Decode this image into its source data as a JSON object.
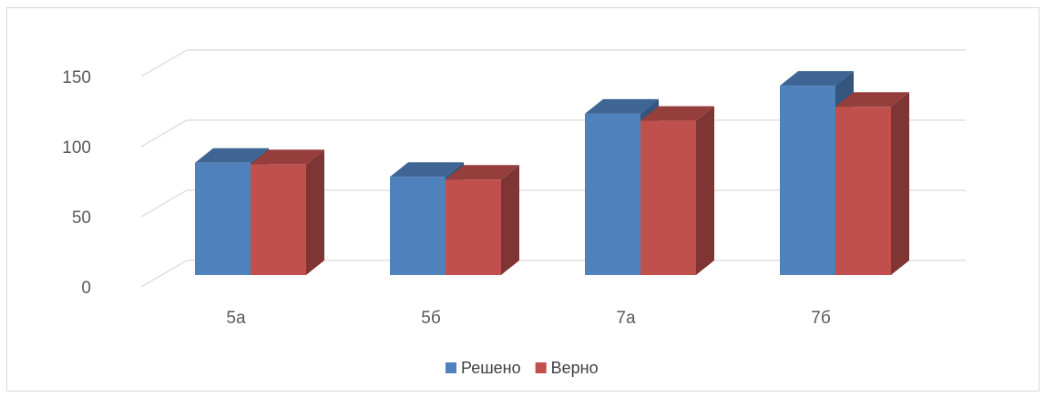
{
  "chart_data": {
    "type": "bar",
    "style": "3d-clustered-column",
    "categories": [
      "5а",
      "5б",
      "7а",
      "7б"
    ],
    "series": [
      {
        "name": "Решено",
        "values": [
          80,
          70,
          115,
          135
        ],
        "color": "#4f81bd"
      },
      {
        "name": "Верно",
        "values": [
          79,
          68,
          110,
          120
        ],
        "color": "#c0504d"
      }
    ],
    "y_ticks": [
      "0",
      "50",
      "100",
      "150"
    ],
    "ylim": [
      0,
      150
    ],
    "grid": true,
    "legend_position": "bottom"
  }
}
